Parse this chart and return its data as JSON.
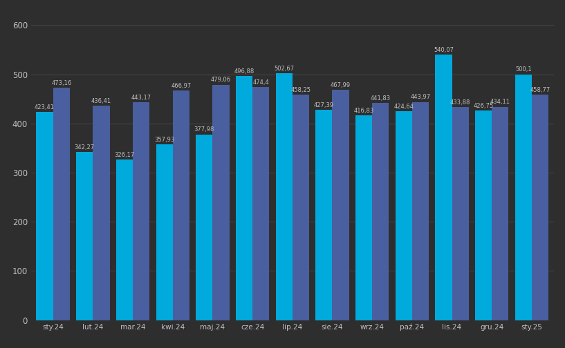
{
  "months": [
    "sty.24",
    "lut.24",
    "mar.24",
    "kwi.24",
    "maj.24",
    "cze.24",
    "lip.24",
    "sie.24",
    "wrz.24",
    "paź.24",
    "lis.24",
    "gru.24",
    "sty.25"
  ],
  "values_light": [
    423.41,
    342.27,
    326.17,
    357.93,
    377.98,
    496.88,
    502.67,
    427.39,
    416.83,
    424.64,
    540.07,
    426.75,
    500.1
  ],
  "values_dark": [
    473.16,
    436.41,
    443.17,
    466.97,
    479.06,
    474.4,
    458.25,
    467.99,
    441.83,
    443.97,
    433.88,
    434.11,
    458.77
  ],
  "labels_light": [
    "423,41",
    "342,27",
    "326,17",
    "357,93",
    "377,98",
    "496,88",
    "502,67",
    "427,39",
    "416,83",
    "424,64",
    "540,07",
    "426,75",
    "500,1"
  ],
  "labels_dark": [
    "473,16",
    "436,41",
    "443,17",
    "466,97",
    "479,06",
    "474,4",
    "458,25",
    "467,99",
    "441,83",
    "443,97",
    "433,88",
    "434,11",
    "458,77"
  ],
  "color_light": "#00AADD",
  "color_dark": "#4A5FA0",
  "background_color": "#2e2e2e",
  "grid_color": "#4a4a4a",
  "text_color": "#c0c0c0",
  "ylim": [
    0,
    630
  ],
  "yticks": [
    0,
    100,
    200,
    300,
    400,
    500,
    600
  ],
  "bar_width": 0.42,
  "figsize": [
    8.17,
    5.04
  ],
  "dpi": 100
}
